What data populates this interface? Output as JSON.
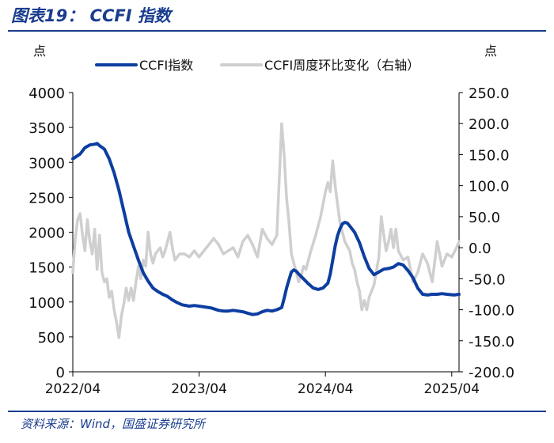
{
  "header": {
    "title": "图表19： CCFI 指数"
  },
  "footer": {
    "source": "资料来源：Wind，国盛证券研究所"
  },
  "colors": {
    "accent": "#1a3d8f",
    "index_line": "#0c3ea0",
    "change_line": "#cfcfcf"
  },
  "chart_data": {
    "type": "line",
    "title": "CCFI 指数",
    "ylabel_left": "点",
    "ylabel_right": "点",
    "ylim_left": [
      0,
      4000
    ],
    "ylim_right": [
      -200,
      250
    ],
    "yticks_left": [
      "0",
      "500",
      "1000",
      "1500",
      "2000",
      "2500",
      "3000",
      "3500",
      "4000"
    ],
    "yticks_right": [
      "-200.0",
      "-150.0",
      "-100.0",
      "-50.0",
      "0.0",
      "50.0",
      "100.0",
      "150.0",
      "200.0",
      "250.0"
    ],
    "xlim": [
      0,
      159
    ],
    "xticks": [
      {
        "label": "2022/04",
        "pos": 0
      },
      {
        "label": "2023/04",
        "pos": 52
      },
      {
        "label": "2024/04",
        "pos": 104
      },
      {
        "label": "2025/04",
        "pos": 156
      }
    ],
    "legend": {
      "position": "top"
    },
    "series": [
      {
        "name": "CCFI指数",
        "axis": "left",
        "points": [
          [
            0,
            3050
          ],
          [
            3,
            3120
          ],
          [
            5,
            3210
          ],
          [
            7,
            3250
          ],
          [
            9,
            3260
          ],
          [
            10,
            3270
          ],
          [
            11,
            3240
          ],
          [
            13,
            3190
          ],
          [
            15,
            3050
          ],
          [
            17,
            2850
          ],
          [
            19,
            2600
          ],
          [
            21,
            2300
          ],
          [
            23,
            2000
          ],
          [
            25,
            1800
          ],
          [
            27,
            1600
          ],
          [
            29,
            1420
          ],
          [
            31,
            1300
          ],
          [
            33,
            1200
          ],
          [
            35,
            1150
          ],
          [
            37,
            1110
          ],
          [
            39,
            1080
          ],
          [
            41,
            1030
          ],
          [
            43,
            990
          ],
          [
            45,
            960
          ],
          [
            48,
            940
          ],
          [
            50,
            950
          ],
          [
            52,
            940
          ],
          [
            54,
            930
          ],
          [
            57,
            915
          ],
          [
            60,
            880
          ],
          [
            62,
            870
          ],
          [
            64,
            870
          ],
          [
            66,
            880
          ],
          [
            68,
            870
          ],
          [
            70,
            860
          ],
          [
            72,
            840
          ],
          [
            74,
            820
          ],
          [
            76,
            830
          ],
          [
            78,
            860
          ],
          [
            80,
            880
          ],
          [
            82,
            870
          ],
          [
            84,
            890
          ],
          [
            86,
            920
          ],
          [
            87,
            1050
          ],
          [
            88,
            1200
          ],
          [
            89,
            1320
          ],
          [
            90,
            1430
          ],
          [
            91,
            1460
          ],
          [
            92,
            1440
          ],
          [
            93,
            1400
          ],
          [
            95,
            1330
          ],
          [
            97,
            1260
          ],
          [
            99,
            1200
          ],
          [
            101,
            1180
          ],
          [
            103,
            1200
          ],
          [
            105,
            1270
          ],
          [
            106,
            1400
          ],
          [
            107,
            1600
          ],
          [
            108,
            1800
          ],
          [
            109,
            1950
          ],
          [
            110,
            2050
          ],
          [
            111,
            2120
          ],
          [
            112,
            2140
          ],
          [
            113,
            2130
          ],
          [
            114,
            2090
          ],
          [
            116,
            2000
          ],
          [
            118,
            1850
          ],
          [
            120,
            1650
          ],
          [
            122,
            1480
          ],
          [
            124,
            1390
          ],
          [
            126,
            1430
          ],
          [
            128,
            1470
          ],
          [
            130,
            1480
          ],
          [
            132,
            1500
          ],
          [
            134,
            1550
          ],
          [
            136,
            1530
          ],
          [
            138,
            1450
          ],
          [
            140,
            1350
          ],
          [
            142,
            1200
          ],
          [
            144,
            1110
          ],
          [
            146,
            1100
          ],
          [
            148,
            1110
          ],
          [
            150,
            1110
          ],
          [
            152,
            1120
          ],
          [
            154,
            1110
          ],
          [
            157,
            1100
          ],
          [
            159,
            1110
          ]
        ]
      },
      {
        "name": "CCFI周度环比变化（右轴）",
        "axis": "right",
        "points": [
          [
            0,
            -40
          ],
          [
            1,
            15
          ],
          [
            2,
            45
          ],
          [
            3,
            55
          ],
          [
            4,
            20
          ],
          [
            5,
            -5
          ],
          [
            6,
            45
          ],
          [
            7,
            10
          ],
          [
            8,
            -10
          ],
          [
            9,
            30
          ],
          [
            10,
            -35
          ],
          [
            11,
            20
          ],
          [
            12,
            -40
          ],
          [
            13,
            -55
          ],
          [
            14,
            -50
          ],
          [
            15,
            -80
          ],
          [
            16,
            -70
          ],
          [
            17,
            -100
          ],
          [
            18,
            -120
          ],
          [
            19,
            -145
          ],
          [
            20,
            -110
          ],
          [
            21,
            -90
          ],
          [
            22,
            -65
          ],
          [
            23,
            -85
          ],
          [
            24,
            -65
          ],
          [
            25,
            -85
          ],
          [
            26,
            -55
          ],
          [
            27,
            -30
          ],
          [
            28,
            -50
          ],
          [
            29,
            -20
          ],
          [
            30,
            -30
          ],
          [
            31,
            25
          ],
          [
            32,
            -10
          ],
          [
            33,
            -25
          ],
          [
            34,
            -10
          ],
          [
            35,
            -5
          ],
          [
            36,
            0
          ],
          [
            37,
            -15
          ],
          [
            38,
            -5
          ],
          [
            40,
            25
          ],
          [
            41,
            0
          ],
          [
            42,
            -20
          ],
          [
            43,
            -15
          ],
          [
            44,
            -10
          ],
          [
            46,
            -10
          ],
          [
            48,
            -15
          ],
          [
            50,
            -5
          ],
          [
            52,
            -15
          ],
          [
            54,
            -5
          ],
          [
            56,
            5
          ],
          [
            58,
            15
          ],
          [
            60,
            5
          ],
          [
            62,
            -10
          ],
          [
            64,
            -5
          ],
          [
            66,
            0
          ],
          [
            68,
            -15
          ],
          [
            70,
            10
          ],
          [
            72,
            20
          ],
          [
            74,
            5
          ],
          [
            76,
            -15
          ],
          [
            78,
            30
          ],
          [
            80,
            15
          ],
          [
            82,
            5
          ],
          [
            84,
            20
          ],
          [
            86,
            200
          ],
          [
            87,
            150
          ],
          [
            88,
            80
          ],
          [
            89,
            40
          ],
          [
            90,
            -10
          ],
          [
            91,
            -25
          ],
          [
            92,
            -40
          ],
          [
            93,
            -55
          ],
          [
            94,
            -45
          ],
          [
            95,
            -30
          ],
          [
            96,
            -35
          ],
          [
            98,
            -5
          ],
          [
            100,
            20
          ],
          [
            102,
            50
          ],
          [
            104,
            90
          ],
          [
            105,
            105
          ],
          [
            106,
            90
          ],
          [
            107,
            140
          ],
          [
            108,
            100
          ],
          [
            109,
            70
          ],
          [
            110,
            40
          ],
          [
            112,
            10
          ],
          [
            114,
            -5
          ],
          [
            115,
            -25
          ],
          [
            116,
            -35
          ],
          [
            117,
            -55
          ],
          [
            118,
            -70
          ],
          [
            119,
            -100
          ],
          [
            120,
            -85
          ],
          [
            121,
            -100
          ],
          [
            122,
            -80
          ],
          [
            124,
            -60
          ],
          [
            126,
            -15
          ],
          [
            127,
            50
          ],
          [
            128,
            20
          ],
          [
            129,
            -5
          ],
          [
            130,
            10
          ],
          [
            131,
            30
          ],
          [
            132,
            0
          ],
          [
            133,
            30
          ],
          [
            134,
            -5
          ],
          [
            136,
            -20
          ],
          [
            138,
            -15
          ],
          [
            140,
            -55
          ],
          [
            142,
            -40
          ],
          [
            144,
            -10
          ],
          [
            146,
            -25
          ],
          [
            148,
            -55
          ],
          [
            150,
            10
          ],
          [
            152,
            -30
          ],
          [
            154,
            -10
          ],
          [
            156,
            -15
          ],
          [
            158,
            0
          ],
          [
            159,
            10
          ]
        ]
      }
    ]
  }
}
